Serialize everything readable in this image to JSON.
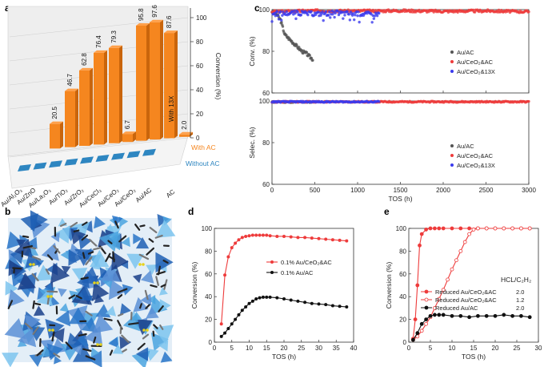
{
  "panels": {
    "a": "a",
    "b": "b",
    "c": "c",
    "d": "d",
    "e": "e"
  },
  "colors": {
    "orange": "#f5861f",
    "orange_dark": "#c9650c",
    "blue_bar": "#2e86c1",
    "gray_series": "#555555",
    "red_series": "#ee3b3b",
    "blue_series": "#3b3bee",
    "black": "#111111"
  },
  "chart_data": [
    {
      "id": "a",
      "type": "bar",
      "categories": [
        "Au/Al₂O₃",
        "Au/ZnO",
        "Au/La₂O₃",
        "Au/TiO₂",
        "Au/ZrO₂",
        "Au/CeCl₃",
        "Au/CeO₂",
        "Au/CeO₂",
        "Au/AC",
        "AC"
      ],
      "series": [
        {
          "name": "With AC",
          "values": [
            20.5,
            46.7,
            62.8,
            76.4,
            79.3,
            6.7,
            95.8,
            97.6,
            87.6,
            2.0
          ]
        },
        {
          "name": "Without AC",
          "values": [
            0,
            0,
            0,
            0,
            0,
            0,
            0,
            0,
            0,
            0
          ]
        }
      ],
      "value_labels": [
        "20.5",
        "46.7",
        "62.8",
        "76.4",
        "79.3",
        "6.7",
        "95.8",
        "97.6",
        "87.6",
        "2.0"
      ],
      "annotation": "With 13X",
      "ylabel": "Conversion (%)",
      "yticks": [
        "0",
        "20",
        "40",
        "60",
        "80",
        "100"
      ],
      "ylim": [
        0,
        100
      ]
    },
    {
      "id": "c_top",
      "type": "scatter",
      "ylabel": "Conv. (%)",
      "xlim": [
        0,
        3000
      ],
      "ylim": [
        60,
        100
      ],
      "xticks": [
        "0",
        "500",
        "1000",
        "1500",
        "2000",
        "2500",
        "3000"
      ],
      "yticks": [
        "60",
        "80",
        "100"
      ],
      "series": [
        {
          "name": "Au/AC",
          "x": [
            0,
            50,
            100,
            150,
            200,
            250,
            300,
            350,
            400,
            450,
            480
          ],
          "y": [
            99,
            98,
            95,
            88,
            86,
            84,
            82,
            80,
            79,
            77,
            76
          ]
        },
        {
          "name": "Au/CeO₂&AC",
          "x": [
            0,
            500,
            1000,
            1500,
            2000,
            2500,
            3000
          ],
          "y": [
            99,
            99.5,
            99.3,
            99.5,
            99.2,
            99.4,
            99.0
          ]
        },
        {
          "name": "Au/CeO₂&13X",
          "x": [
            0,
            250,
            500,
            750,
            1000,
            1250
          ],
          "y": [
            98,
            98.5,
            98,
            98.5,
            98,
            98
          ]
        }
      ]
    },
    {
      "id": "c_bottom",
      "type": "scatter",
      "xlabel": "TOS (h)",
      "ylabel": "Selec. (%)",
      "xlim": [
        0,
        3000
      ],
      "ylim": [
        60,
        100
      ],
      "xticks": [
        "0",
        "500",
        "1000",
        "1500",
        "2000",
        "2500",
        "3000"
      ],
      "yticks": [
        "60",
        "80",
        "100"
      ],
      "series": [
        {
          "name": "Au/AC",
          "x": [
            0,
            100,
            200,
            300,
            400,
            480
          ],
          "y": [
            99.5,
            99.5,
            99.5,
            99.5,
            99.5,
            99.5
          ]
        },
        {
          "name": "Au/CeO₂&AC",
          "x": [
            0,
            500,
            1000,
            1500,
            2000,
            2500,
            3000
          ],
          "y": [
            99.6,
            99.6,
            99.6,
            99.6,
            99.6,
            99.6,
            99.6
          ]
        },
        {
          "name": "Au/CeO₂&13X",
          "x": [
            0,
            250,
            500,
            750,
            1000,
            1250
          ],
          "y": [
            99.6,
            99.6,
            99.6,
            99.6,
            99.6,
            99.6
          ]
        }
      ]
    },
    {
      "id": "d",
      "type": "line",
      "xlabel": "TOS (h)",
      "ylabel": "Conversion (%)",
      "xlim": [
        0,
        40
      ],
      "ylim": [
        0,
        100
      ],
      "xticks": [
        "0",
        "5",
        "10",
        "15",
        "20",
        "25",
        "30",
        "35",
        "40"
      ],
      "yticks": [
        "0",
        "20",
        "40",
        "60",
        "80",
        "100"
      ],
      "series": [
        {
          "name": "0.1% Au/CeO₂&AC",
          "x": [
            2,
            3,
            4,
            5,
            6,
            7,
            8,
            9,
            10,
            11,
            12,
            13,
            14,
            15,
            16,
            18,
            20,
            22,
            24,
            26,
            28,
            30,
            32,
            34,
            36,
            38
          ],
          "y": [
            16,
            59,
            75,
            83,
            87,
            90,
            92,
            93,
            93.5,
            94,
            94,
            94,
            94,
            94,
            93.5,
            93,
            93,
            92.5,
            92,
            92,
            91.5,
            91,
            90.5,
            90,
            89.5,
            89
          ]
        },
        {
          "name": "0.1% Au/AC",
          "x": [
            2,
            3,
            4,
            5,
            6,
            7,
            8,
            9,
            10,
            11,
            12,
            13,
            14,
            15,
            16,
            18,
            20,
            22,
            24,
            26,
            28,
            30,
            32,
            34,
            36,
            38
          ],
          "y": [
            5,
            8,
            12,
            16,
            20,
            24,
            28,
            31,
            34,
            36,
            38,
            39,
            39.5,
            39.5,
            39.5,
            39,
            38,
            37,
            36,
            35,
            34,
            33.5,
            33,
            32,
            31.5,
            31
          ]
        }
      ]
    },
    {
      "id": "e",
      "type": "line",
      "xlabel": "TOS (h)",
      "ylabel": "Conversion (%)",
      "xlim": [
        0,
        30
      ],
      "ylim": [
        0,
        100
      ],
      "xticks": [
        "0",
        "5",
        "10",
        "15",
        "20",
        "25",
        "30"
      ],
      "yticks": [
        "0",
        "20",
        "40",
        "60",
        "80",
        "100"
      ],
      "legend_title": "HCL/C₂H₂",
      "series": [
        {
          "name": "Reduced Au/CeO₂&AC",
          "ratio": "2.0",
          "x": [
            1,
            1.5,
            2,
            2.5,
            3,
            4,
            5,
            6,
            7,
            8,
            10,
            12,
            14,
            16,
            18,
            20,
            22,
            24,
            26,
            28
          ],
          "y": [
            3,
            20,
            50,
            85,
            95,
            99,
            100,
            100,
            100,
            100,
            100,
            100,
            100,
            100,
            100,
            100,
            100,
            100,
            100,
            100
          ]
        },
        {
          "name": "Reduced Au/CeO₂&AC",
          "ratio": "1.2",
          "x": [
            1,
            2,
            3,
            4,
            5,
            6,
            7,
            8,
            9,
            10,
            11,
            12,
            13,
            14,
            15,
            16,
            18,
            20,
            22,
            24,
            26,
            28
          ],
          "y": [
            2,
            5,
            10,
            16,
            22,
            30,
            38,
            46,
            55,
            64,
            72,
            80,
            88,
            95,
            99,
            100,
            100,
            100,
            100,
            100,
            100,
            100
          ]
        },
        {
          "name": "Reduced Au/AC",
          "ratio": "2.0",
          "x": [
            1,
            2,
            3,
            4,
            5,
            6,
            7,
            8,
            10,
            12,
            14,
            16,
            18,
            20,
            22,
            24,
            26,
            28
          ],
          "y": [
            2,
            8,
            16,
            20,
            23,
            24,
            24,
            24,
            23,
            23,
            22,
            23,
            23,
            23,
            24,
            23,
            23,
            22
          ]
        }
      ]
    }
  ]
}
